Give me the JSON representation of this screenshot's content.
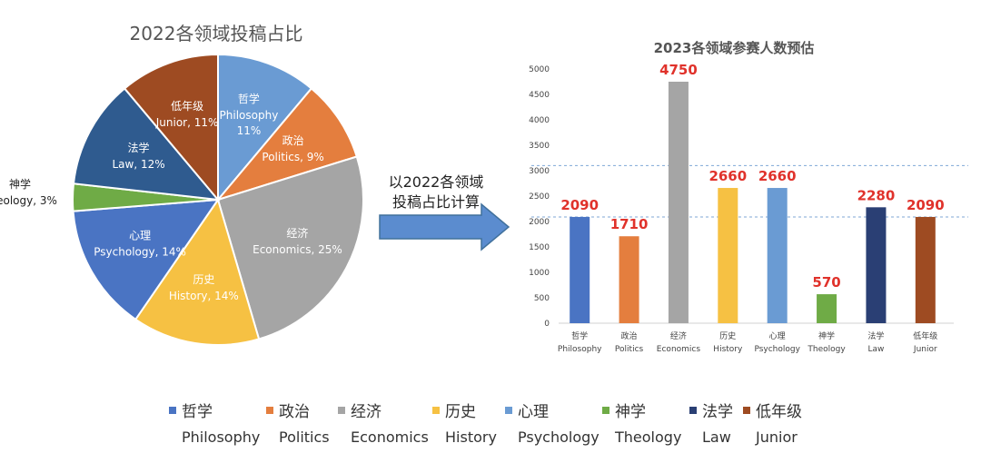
{
  "pie_chart": {
    "title": "2022各领域投稿占比"
  },
  "arrow_text": [
    "以2022各领域",
    "投稿占比计算"
  ],
  "bar_chart": {
    "title": "2023各领域参赛人数预估"
  },
  "chart_data": [
    {
      "type": "pie",
      "title": "2022各领域投稿占比",
      "slices": [
        {
          "label_cn": "哲学",
          "label_en": "Philosophy",
          "value": 11,
          "color": "#6a9bd3"
        },
        {
          "label_cn": "政治",
          "label_en": "Politics",
          "value": 9,
          "color": "#e47e3e"
        },
        {
          "label_cn": "经济",
          "label_en": "Economics",
          "value": 25,
          "color": "#a5a5a5"
        },
        {
          "label_cn": "历史",
          "label_en": "History",
          "value": 14,
          "color": "#f6c143"
        },
        {
          "label_cn": "心理",
          "label_en": "Psychology",
          "value": 14,
          "color": "#4a74c3"
        },
        {
          "label_cn": "神学",
          "label_en": "Theology",
          "value": 3,
          "color": "#6fab46"
        },
        {
          "label_cn": "法学",
          "label_en": "Law",
          "value": 12,
          "color": "#2f5b8f"
        },
        {
          "label_cn": "低年级",
          "label_en": "Junior",
          "value": 11,
          "color": "#9e4b22"
        }
      ],
      "unit": "%"
    },
    {
      "type": "bar",
      "title": "2023各领域参赛人数预估",
      "categories": [
        {
          "cn": "哲学",
          "en": "Philosophy"
        },
        {
          "cn": "政治",
          "en": "Politics"
        },
        {
          "cn": "经济",
          "en": "Economics"
        },
        {
          "cn": "历史",
          "en": "History"
        },
        {
          "cn": "心理",
          "en": "Psychology"
        },
        {
          "cn": "神学",
          "en": "Theology"
        },
        {
          "cn": "法学",
          "en": "Law"
        },
        {
          "cn": "低年级",
          "en": "Junior"
        }
      ],
      "values": [
        2090,
        1710,
        4750,
        2660,
        2660,
        570,
        2280,
        2090
      ],
      "colors": [
        "#4a74c3",
        "#e47e3e",
        "#a5a5a5",
        "#f6c143",
        "#6a9bd3",
        "#6fab46",
        "#2a3f74",
        "#9e4b22"
      ],
      "ylim": [
        0,
        5000
      ],
      "yticks": [
        0,
        500,
        1000,
        1500,
        2000,
        2500,
        3000,
        3500,
        4000,
        4500,
        5000
      ],
      "reference_lines": [
        2090,
        3100
      ],
      "data_label_color": "#e0322b"
    }
  ],
  "legend": [
    {
      "cn": "哲学",
      "en": "Philosophy",
      "color": "#4a74c3"
    },
    {
      "cn": "政治",
      "en": "Politics",
      "color": "#e47e3e"
    },
    {
      "cn": "经济",
      "en": "Economics",
      "color": "#a5a5a5"
    },
    {
      "cn": "历史",
      "en": "History",
      "color": "#f6c143"
    },
    {
      "cn": "心理",
      "en": "Psychology",
      "color": "#6a9bd3"
    },
    {
      "cn": "神学",
      "en": "Theology",
      "color": "#6fab46"
    },
    {
      "cn": "法学",
      "en": "Law",
      "color": "#2a3f74"
    },
    {
      "cn": "低年级",
      "en": "Junior",
      "color": "#9e4b22"
    }
  ]
}
